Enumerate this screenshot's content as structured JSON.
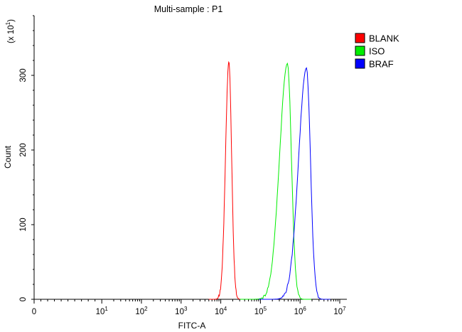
{
  "chart_data": {
    "type": "line",
    "title": "Multi-sample : P1",
    "xlabel": "FITC-A",
    "ylabel": "Count",
    "y_multiplier_label": "(x 10",
    "y_multiplier_exp": "1",
    "y_multiplier_close": ")",
    "x_scale": "log (biexponential, linear near 0)",
    "xlim": [
      0,
      10000000
    ],
    "ylim": [
      0,
      380
    ],
    "y_ticks": [
      0,
      100,
      200,
      300
    ],
    "y_tick_labels": [
      "0",
      "100",
      "200",
      "300"
    ],
    "x_ticks": [
      {
        "value": 0,
        "base": "0",
        "exp": ""
      },
      {
        "value": 10,
        "base": "10",
        "exp": "1"
      },
      {
        "value": 100,
        "base": "10",
        "exp": "2"
      },
      {
        "value": 1000,
        "base": "10",
        "exp": "3"
      },
      {
        "value": 10000,
        "base": "10",
        "exp": "4"
      },
      {
        "value": 100000,
        "base": "10",
        "exp": "5"
      },
      {
        "value": 1000000,
        "base": "10",
        "exp": "6"
      },
      {
        "value": 10000000,
        "base": "10",
        "exp": "7"
      }
    ],
    "grid": false,
    "legend_position": "top-right outside",
    "series": [
      {
        "name": "BLANK",
        "color": "#ff0000",
        "peak_x": 16000,
        "peak_y": 318,
        "spread_left": 0.085,
        "spread_right": 0.07
      },
      {
        "name": "ISO",
        "color": "#00ee00",
        "peak_x": 480000,
        "peak_y": 316,
        "spread_left": 0.2,
        "spread_right": 0.1
      },
      {
        "name": "BRAF",
        "color": "#0000ff",
        "peak_x": 1450000,
        "peak_y": 310,
        "spread_left": 0.2,
        "spread_right": 0.1
      }
    ]
  }
}
